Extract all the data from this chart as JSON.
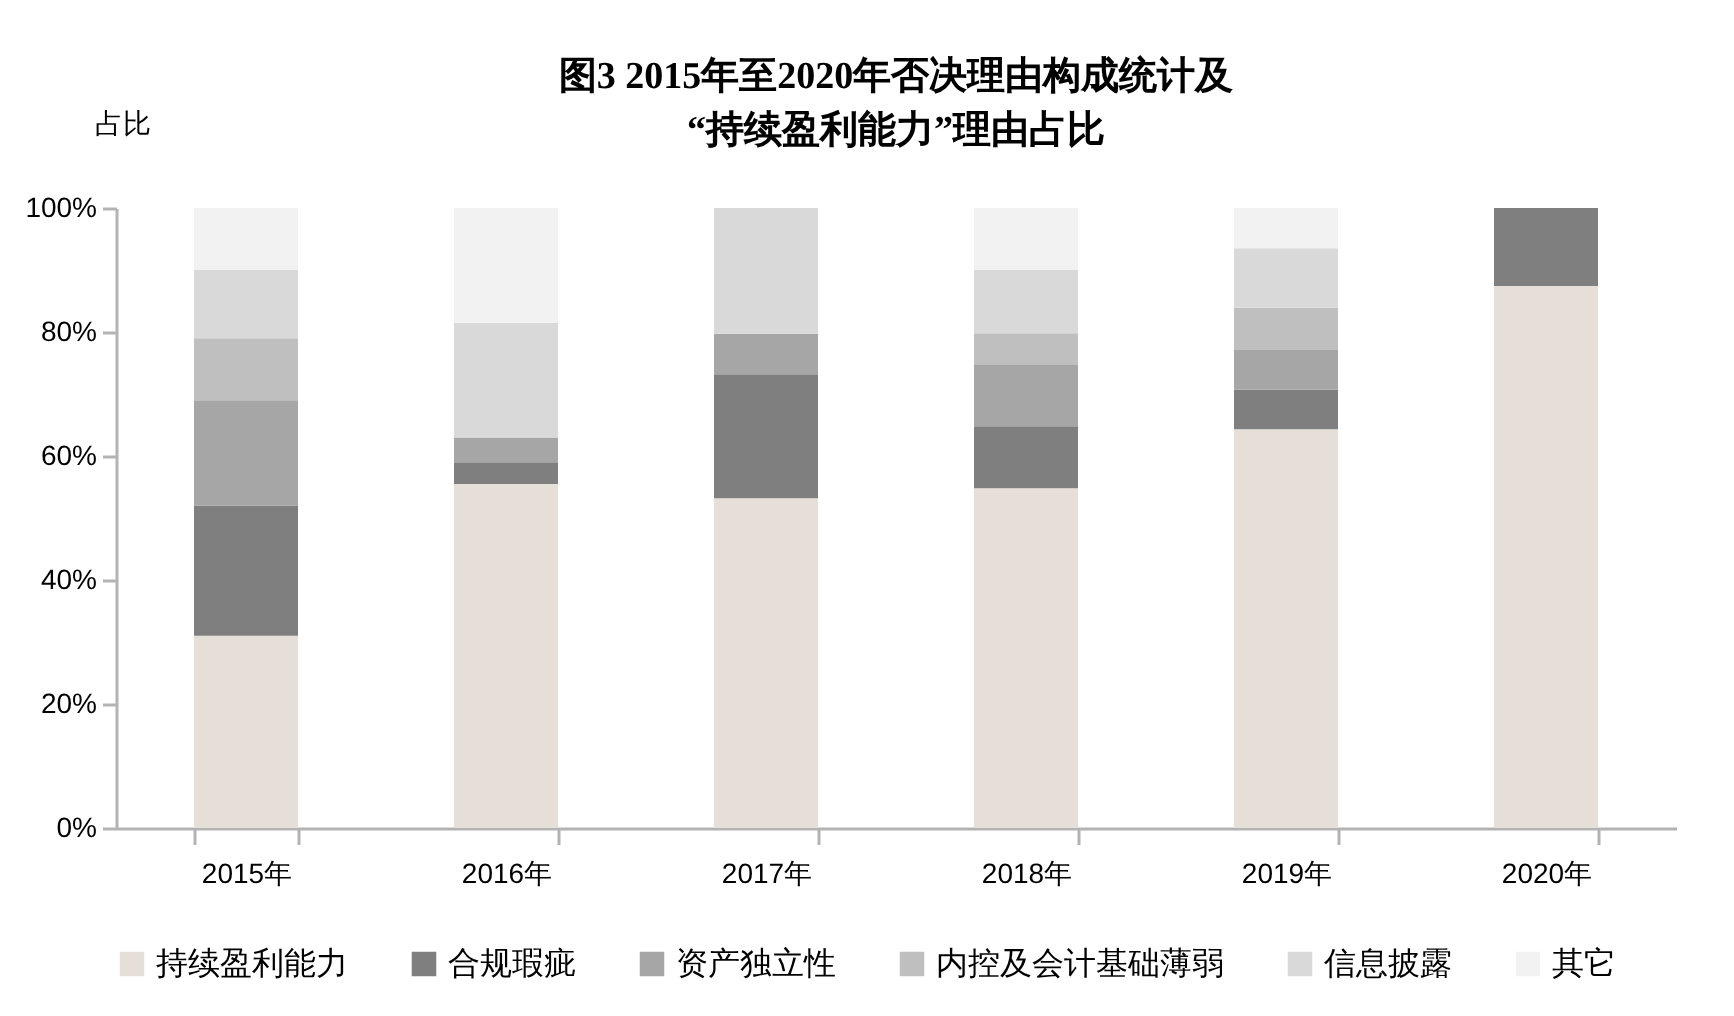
{
  "chart_data": {
    "type": "bar",
    "title": "图3  2015年至2020年否决理由构成统计及\n“持续盈利能力”理由占比",
    "ylabel": "占比",
    "categories": [
      "2015年",
      "2016年",
      "2017年",
      "2018年",
      "2019年",
      "2020年"
    ],
    "series": [
      {
        "name": "持续盈利能力",
        "color": "#e6dfd8",
        "values": [
          31,
          55.5,
          53.2,
          54.8,
          64.3,
          87.4
        ]
      },
      {
        "name": "合规瑕疵",
        "color": "#7f7f7f",
        "values": [
          21,
          3.5,
          20,
          10,
          6.4,
          12.6
        ]
      },
      {
        "name": "资产独立性",
        "color": "#a6a6a6",
        "values": [
          17,
          4,
          6.5,
          10,
          6.4,
          null
        ]
      },
      {
        "name": "内控及会计基础薄弱",
        "color": "#bfbfbf",
        "values": [
          10,
          null,
          null,
          5,
          6.8,
          null
        ]
      },
      {
        "name": "信息披露",
        "color": "#d9d9d9",
        "values": [
          11,
          18.5,
          20.3,
          10.2,
          9.6,
          null
        ]
      },
      {
        "name": "其它",
        "color": "#f2f2f2",
        "values": [
          10,
          18.5,
          null,
          10,
          6.5,
          null
        ]
      }
    ],
    "stacked": true,
    "ylim": [
      0,
      100
    ],
    "yticks": [
      {
        "value": 0,
        "label": "0%"
      },
      {
        "value": 20,
        "label": "20%"
      },
      {
        "value": 40,
        "label": "40%"
      },
      {
        "value": 60,
        "label": "60%"
      },
      {
        "value": 80,
        "label": "80%"
      },
      {
        "value": 100,
        "label": "100%"
      }
    ],
    "grid": false,
    "legend": "bottom"
  }
}
